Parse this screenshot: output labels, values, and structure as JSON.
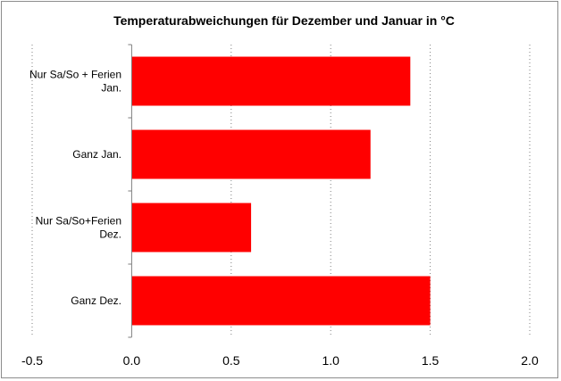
{
  "chart_data": {
    "type": "bar",
    "orientation": "horizontal",
    "title": "Temperaturabweichungen für Dezember und Januar in °C",
    "categories": [
      [
        "Nur Sa/So + Ferien",
        "Jan."
      ],
      [
        "Ganz Jan."
      ],
      [
        "Nur Sa/So+Ferien",
        "Dez."
      ],
      [
        "Ganz Dez."
      ]
    ],
    "values": [
      1.4,
      1.2,
      0.6,
      1.5
    ],
    "xlim": [
      -0.5,
      2.0
    ],
    "x_ticks": [
      "-0.5",
      "0.0",
      "0.5",
      "1.0",
      "1.5",
      "2.0"
    ],
    "x_tick_values": [
      -0.5,
      0.0,
      0.5,
      1.0,
      1.5,
      2.0
    ],
    "grid": "vertical dashed",
    "legend": "none",
    "bar_color": "#ff0000"
  }
}
